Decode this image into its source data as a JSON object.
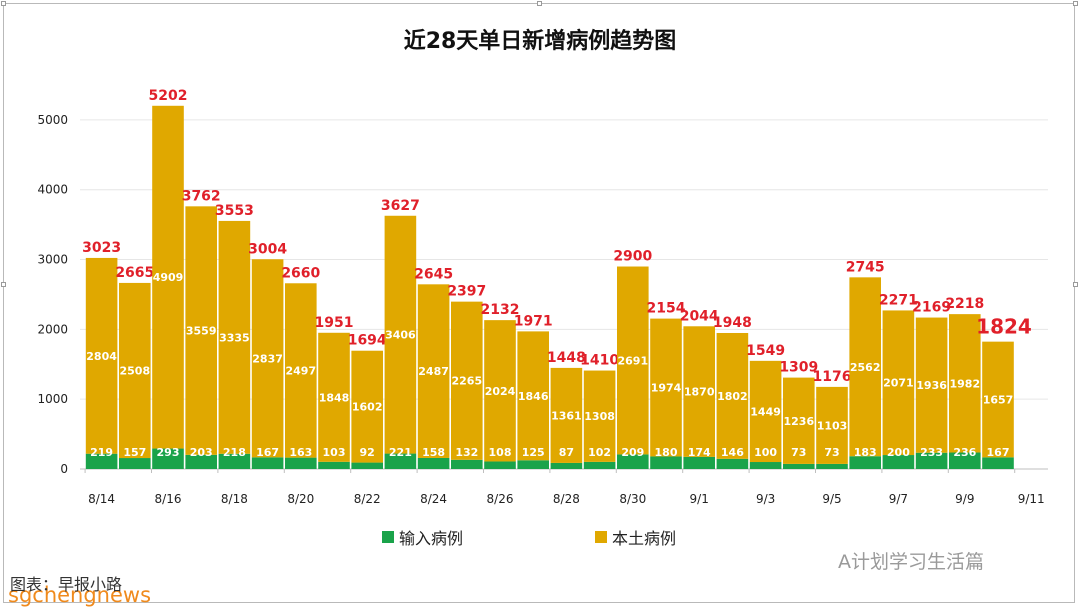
{
  "chart_data": {
    "type": "bar",
    "stacked": true,
    "title": "近28天单日新增病例趋势图",
    "categories": [
      "8/14",
      "8/15",
      "8/16",
      "8/17",
      "8/18",
      "8/19",
      "8/20",
      "8/21",
      "8/22",
      "8/23",
      "8/24",
      "8/25",
      "8/26",
      "8/27",
      "8/28",
      "8/29",
      "8/30",
      "8/31",
      "9/1",
      "9/2",
      "9/3",
      "9/4",
      "9/5",
      "9/6",
      "9/7",
      "9/8",
      "9/9",
      "9/10"
    ],
    "xtick_labels": [
      "8/14",
      "8/16",
      "8/18",
      "8/20",
      "8/22",
      "8/24",
      "8/26",
      "8/28",
      "8/30",
      "9/1",
      "9/3",
      "9/5",
      "9/7",
      "9/9",
      "9/11"
    ],
    "series": [
      {
        "name": "输入病例",
        "color": "#1aa34a",
        "values": [
          219,
          157,
          293,
          203,
          218,
          167,
          163,
          103,
          92,
          221,
          158,
          132,
          108,
          125,
          87,
          102,
          209,
          180,
          174,
          146,
          100,
          73,
          73,
          183,
          200,
          233,
          236,
          167
        ]
      },
      {
        "name": "本土病例",
        "color": "#e0a800",
        "values": [
          2804,
          2508,
          4909,
          3559,
          3335,
          2837,
          2497,
          1848,
          1602,
          3406,
          2487,
          2265,
          2024,
          1846,
          1361,
          1308,
          2691,
          1974,
          1870,
          1802,
          1449,
          1236,
          1103,
          2562,
          2071,
          1936,
          1982,
          1657
        ]
      }
    ],
    "totals": [
      3023,
      2665,
      5202,
      3762,
      3553,
      3004,
      2660,
      1951,
      1694,
      3627,
      2645,
      2397,
      2132,
      1971,
      1448,
      1410,
      2900,
      2154,
      2044,
      1948,
      1549,
      1309,
      1176,
      2745,
      2271,
      2169,
      2218,
      1824
    ],
    "yticks": [
      0,
      1000,
      2000,
      3000,
      4000,
      5000
    ],
    "ylim": [
      0,
      5600
    ],
    "grid": true,
    "legend_position": "bottom"
  },
  "watermark": {
    "text": "A计划学习生活篇",
    "site": "sgchengnews",
    "caption": "图表：早报小路"
  }
}
